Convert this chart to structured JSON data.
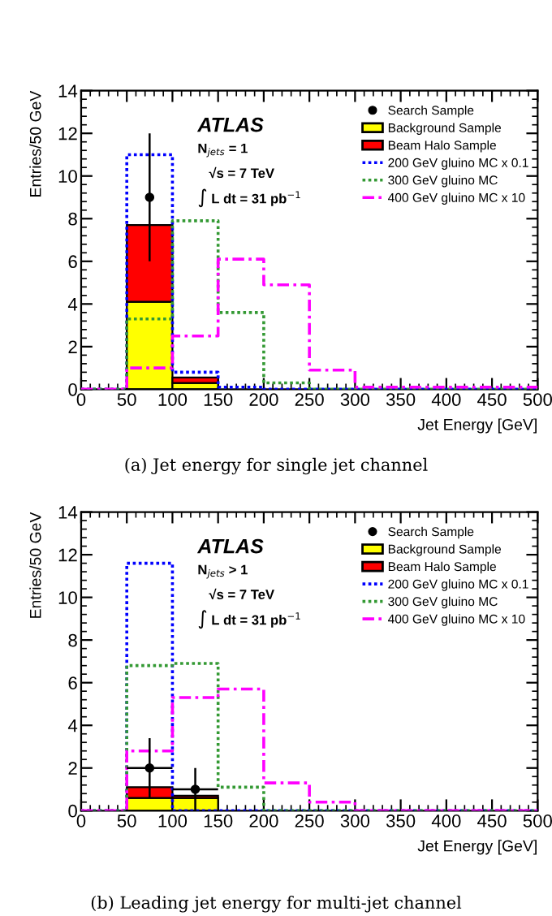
{
  "chart_data": [
    {
      "type": "bar",
      "xlabel": "Jet Energy [GeV]",
      "ylabel": "Entries/50 GeV",
      "x": [
        25,
        75,
        125,
        175,
        225,
        275,
        325,
        375,
        425,
        475
      ],
      "stacked": true,
      "xlim": [
        0,
        500
      ],
      "ylim": [
        0,
        14
      ],
      "xticks": [
        0,
        50,
        100,
        150,
        200,
        250,
        300,
        350,
        400,
        450,
        500
      ],
      "yticks": [
        0,
        2,
        4,
        6,
        8,
        10,
        12,
        14
      ],
      "legend": "top right",
      "annotations": [
        "ATLAS",
        "N$_{jets}$ = 1",
        "√s = 7 TeV",
        "∫ L dt = 31 pb$^{−1}$",
        "(a) Jet energy for single jet channel"
      ],
      "series": [
        {
          "name": "Search Sample",
          "type": "scatter",
          "color": "#000000",
          "marker": "circle",
          "x": [
            75
          ],
          "values": [
            9
          ],
          "errors": [
            3
          ]
        },
        {
          "name": "Background Sample",
          "color": "#ffff00",
          "values": [
            0,
            4.1,
            0.3,
            0,
            0,
            0,
            0,
            0,
            0,
            0
          ]
        },
        {
          "name": "Beam Halo Sample",
          "color": "#ff0000",
          "values": [
            0,
            3.6,
            0.25,
            0,
            0,
            0,
            0,
            0,
            0,
            0
          ]
        },
        {
          "name": "200 GeV gluino MC x 0.1",
          "type": "step",
          "color": "#0000ff",
          "line_style": "dotted",
          "x": [
            0,
            50,
            100,
            150,
            200,
            250,
            300,
            350,
            400,
            450,
            500
          ],
          "values": [
            0,
            11,
            0.8,
            0.1,
            0,
            0,
            0,
            0,
            0,
            0,
            0
          ]
        },
        {
          "name": "300 GeV gluino MC",
          "type": "step",
          "color": "#339933",
          "line_style": "dotted",
          "x": [
            0,
            50,
            100,
            150,
            200,
            250,
            300,
            350,
            400,
            450,
            500
          ],
          "values": [
            0,
            3.3,
            7.9,
            3.6,
            0.3,
            0,
            0,
            0,
            0,
            0,
            0
          ]
        },
        {
          "name": "400 GeV gluino MC x 10",
          "type": "step",
          "color": "#ff00ff",
          "line_style": "dashed",
          "x": [
            0,
            50,
            100,
            150,
            200,
            250,
            300,
            350,
            400,
            450,
            500
          ],
          "values": [
            0,
            1.0,
            2.5,
            6.1,
            4.9,
            0.9,
            0.1,
            0.1,
            0.1,
            0.1,
            0.1
          ]
        }
      ]
    },
    {
      "type": "bar",
      "xlabel": "Jet Energy [GeV]",
      "ylabel": "Entries/50 GeV",
      "x": [
        25,
        75,
        125,
        175,
        225,
        275,
        325,
        375,
        425,
        475
      ],
      "stacked": true,
      "xlim": [
        0,
        500
      ],
      "ylim": [
        0,
        14
      ],
      "xticks": [
        0,
        50,
        100,
        150,
        200,
        250,
        300,
        350,
        400,
        450,
        500
      ],
      "yticks": [
        0,
        2,
        4,
        6,
        8,
        10,
        12,
        14
      ],
      "legend": "top right",
      "annotations": [
        "ATLAS",
        "N$_{jets}$ > 1",
        "√s = 7 TeV",
        "∫ L dt = 31 pb$^{−1}$",
        "(b) Leading jet energy for multi-jet channel"
      ],
      "series": [
        {
          "name": "Search Sample",
          "type": "scatter",
          "color": "#000000",
          "marker": "circle",
          "x": [
            75,
            125
          ],
          "values": [
            2,
            1
          ],
          "errors": [
            1.4,
            1
          ],
          "xerrors": [
            25,
            25
          ]
        },
        {
          "name": "Background Sample",
          "color": "#ffff00",
          "values": [
            0,
            0.6,
            0.6,
            0,
            0,
            0,
            0,
            0,
            0,
            0
          ]
        },
        {
          "name": "Beam Halo Sample",
          "color": "#ff0000",
          "values": [
            0,
            0.5,
            0.1,
            0,
            0,
            0,
            0,
            0,
            0,
            0
          ]
        },
        {
          "name": "200 GeV gluino MC x 0.1",
          "type": "step",
          "color": "#0000ff",
          "line_style": "dotted",
          "x": [
            0,
            50,
            100,
            150,
            200,
            250,
            300,
            350,
            400,
            450,
            500
          ],
          "values": [
            0,
            11.6,
            0,
            0,
            0,
            0,
            0,
            0,
            0,
            0,
            0
          ]
        },
        {
          "name": "300 GeV gluino MC",
          "type": "step",
          "color": "#339933",
          "line_style": "dotted",
          "x": [
            0,
            50,
            100,
            150,
            200,
            250,
            300,
            350,
            400,
            450,
            500
          ],
          "values": [
            0,
            6.8,
            6.9,
            1.1,
            0,
            0,
            0,
            0,
            0,
            0,
            0
          ]
        },
        {
          "name": "400 GeV gluino MC x 10",
          "type": "step",
          "color": "#ff00ff",
          "line_style": "dashed",
          "x": [
            0,
            50,
            100,
            150,
            200,
            250,
            300,
            350,
            400,
            450,
            500
          ],
          "values": [
            0,
            2.8,
            5.3,
            5.7,
            1.3,
            0.4,
            0,
            0,
            0,
            0,
            0
          ]
        }
      ]
    }
  ]
}
